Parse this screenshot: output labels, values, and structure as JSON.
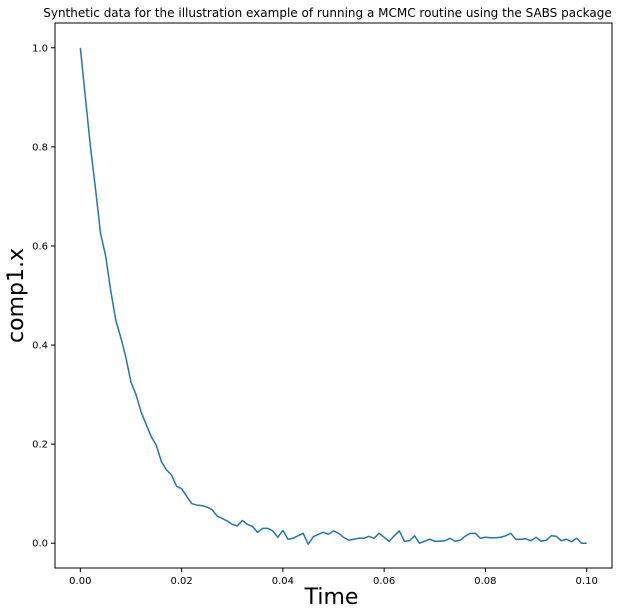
{
  "chart_data": {
    "type": "line",
    "title": "Synthetic data for the illustration example of running a MCMC routine using the SABS package",
    "xlabel": "Time",
    "ylabel": "comp1.x",
    "xlim": [
      -0.005,
      0.105
    ],
    "ylim": [
      -0.05,
      1.05
    ],
    "x_ticks": [
      0.0,
      0.02,
      0.04,
      0.06,
      0.08,
      0.1
    ],
    "x_tick_labels": [
      "0.00",
      "0.02",
      "0.04",
      "0.06",
      "0.08",
      "0.10"
    ],
    "y_ticks": [
      0.0,
      0.2,
      0.4,
      0.6,
      0.8,
      1.0
    ],
    "y_tick_labels": [
      "0.0",
      "0.2",
      "0.4",
      "0.6",
      "0.8",
      "1.0"
    ],
    "grid": false,
    "series": [
      {
        "color": "#1f77b4",
        "x": [
          0.0,
          0.001,
          0.002,
          0.003,
          0.004,
          0.005,
          0.006,
          0.007,
          0.008,
          0.009,
          0.01,
          0.011,
          0.012,
          0.013,
          0.014,
          0.015,
          0.016,
          0.017,
          0.018,
          0.019,
          0.02,
          0.021,
          0.022,
          0.023,
          0.024,
          0.025,
          0.026,
          0.027,
          0.028,
          0.029,
          0.03,
          0.031,
          0.032,
          0.033,
          0.034,
          0.035,
          0.036,
          0.037,
          0.038,
          0.039,
          0.04,
          0.041,
          0.042,
          0.043,
          0.044,
          0.045,
          0.046,
          0.047,
          0.048,
          0.049,
          0.05,
          0.051,
          0.052,
          0.053,
          0.054,
          0.055,
          0.056,
          0.057,
          0.058,
          0.059,
          0.06,
          0.061,
          0.062,
          0.063,
          0.064,
          0.065,
          0.066,
          0.067,
          0.068,
          0.069,
          0.07,
          0.071,
          0.072,
          0.073,
          0.074,
          0.075,
          0.076,
          0.077,
          0.078,
          0.079,
          0.08,
          0.081,
          0.082,
          0.083,
          0.084,
          0.085,
          0.086,
          0.087,
          0.088,
          0.089,
          0.09,
          0.091,
          0.092,
          0.093,
          0.094,
          0.095,
          0.096,
          0.097,
          0.098,
          0.099,
          0.1
        ],
        "y": [
          1.0,
          0.9,
          0.8,
          0.715,
          0.625,
          0.58,
          0.51,
          0.45,
          0.415,
          0.375,
          0.325,
          0.3,
          0.265,
          0.24,
          0.215,
          0.198,
          0.165,
          0.148,
          0.138,
          0.115,
          0.11,
          0.095,
          0.08,
          0.077,
          0.076,
          0.073,
          0.068,
          0.055,
          0.05,
          0.045,
          0.038,
          0.035,
          0.046,
          0.038,
          0.034,
          0.022,
          0.03,
          0.03,
          0.025,
          0.012,
          0.026,
          0.008,
          0.01,
          0.015,
          0.02,
          -0.002,
          0.013,
          0.018,
          0.022,
          0.018,
          0.025,
          0.02,
          0.012,
          0.006,
          0.008,
          0.01,
          0.01,
          0.014,
          0.01,
          0.02,
          0.012,
          0.004,
          0.015,
          0.025,
          0.004,
          0.005,
          0.015,
          0.0,
          0.004,
          0.008,
          0.004,
          0.004,
          0.005,
          0.01,
          0.004,
          0.006,
          0.014,
          0.02,
          0.02,
          0.01,
          0.012,
          0.011,
          0.011,
          0.012,
          0.015,
          0.02,
          0.008,
          0.008,
          0.009,
          0.005,
          0.012,
          0.004,
          0.006,
          0.015,
          0.014,
          0.005,
          0.008,
          0.003,
          0.01,
          0.0,
          0.0
        ]
      }
    ]
  }
}
